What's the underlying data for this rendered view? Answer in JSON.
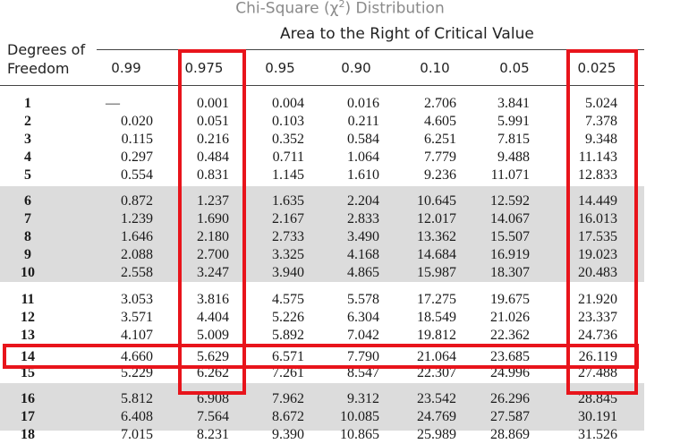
{
  "title": "Chi-Square (χ",
  "title_sup": "2",
  "title_end": ") Distribution",
  "subtitle": "Area to the Right of Critical Value",
  "df_label_line1": "Degrees of",
  "df_label_line2": "Freedom",
  "table": {
    "columns": [
      "0.99",
      "0.975",
      "0.95",
      "0.90",
      "0.10",
      "0.05",
      "0.025"
    ],
    "rows": [
      {
        "df": "1",
        "values": [
          "—",
          "0.001",
          "0.004",
          "0.016",
          "2.706",
          "3.841",
          "5.024"
        ]
      },
      {
        "df": "2",
        "values": [
          "0.020",
          "0.051",
          "0.103",
          "0.211",
          "4.605",
          "5.991",
          "7.378"
        ]
      },
      {
        "df": "3",
        "values": [
          "0.115",
          "0.216",
          "0.352",
          "0.584",
          "6.251",
          "7.815",
          "9.348"
        ]
      },
      {
        "df": "4",
        "values": [
          "0.297",
          "0.484",
          "0.711",
          "1.064",
          "7.779",
          "9.488",
          "11.143"
        ]
      },
      {
        "df": "5",
        "values": [
          "0.554",
          "0.831",
          "1.145",
          "1.610",
          "9.236",
          "11.071",
          "12.833"
        ]
      },
      {
        "df": "6",
        "values": [
          "0.872",
          "1.237",
          "1.635",
          "2.204",
          "10.645",
          "12.592",
          "14.449"
        ]
      },
      {
        "df": "7",
        "values": [
          "1.239",
          "1.690",
          "2.167",
          "2.833",
          "12.017",
          "14.067",
          "16.013"
        ]
      },
      {
        "df": "8",
        "values": [
          "1.646",
          "2.180",
          "2.733",
          "3.490",
          "13.362",
          "15.507",
          "17.535"
        ]
      },
      {
        "df": "9",
        "values": [
          "2.088",
          "2.700",
          "3.325",
          "4.168",
          "14.684",
          "16.919",
          "19.023"
        ]
      },
      {
        "df": "10",
        "values": [
          "2.558",
          "3.247",
          "3.940",
          "4.865",
          "15.987",
          "18.307",
          "20.483"
        ]
      },
      {
        "df": "11",
        "values": [
          "3.053",
          "3.816",
          "4.575",
          "5.578",
          "17.275",
          "19.675",
          "21.920"
        ]
      },
      {
        "df": "12",
        "values": [
          "3.571",
          "4.404",
          "5.226",
          "6.304",
          "18.549",
          "21.026",
          "23.337"
        ]
      },
      {
        "df": "13",
        "values": [
          "4.107",
          "5.009",
          "5.892",
          "7.042",
          "19.812",
          "22.362",
          "24.736"
        ]
      },
      {
        "df": "14",
        "values": [
          "4.660",
          "5.629",
          "6.571",
          "7.790",
          "21.064",
          "23.685",
          "26.119"
        ]
      },
      {
        "df": "15",
        "values": [
          "5.229",
          "6.262",
          "7.261",
          "8.547",
          "22.307",
          "24.996",
          "27.488"
        ]
      },
      {
        "df": "16",
        "values": [
          "5.812",
          "6.908",
          "7.962",
          "9.312",
          "23.542",
          "26.296",
          "28.845"
        ]
      },
      {
        "df": "17",
        "values": [
          "6.408",
          "7.564",
          "8.672",
          "10.085",
          "24.769",
          "27.587",
          "30.191"
        ]
      },
      {
        "df": "18",
        "values": [
          "7.015",
          "8.231",
          "9.390",
          "10.865",
          "25.989",
          "28.869",
          "31.526"
        ]
      }
    ]
  },
  "highlight_color": "#e8141b",
  "shade_color": "#dcdcdc"
}
